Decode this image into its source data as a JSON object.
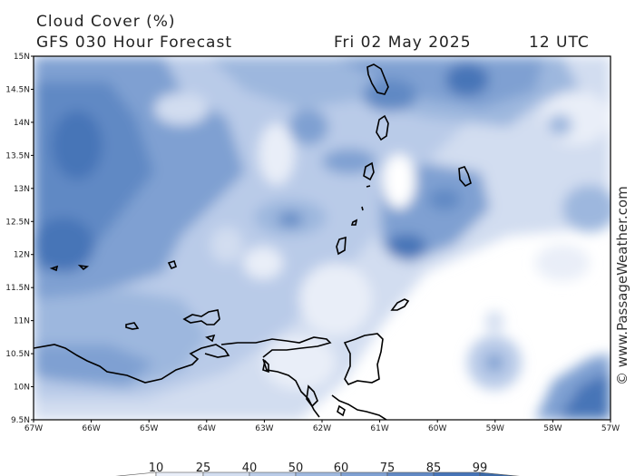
{
  "header": {
    "title": "Cloud Cover (%)",
    "forecast": "GFS 030 Hour Forecast",
    "date": "Fri 02 May 2025",
    "time": "12 UTC"
  },
  "map": {
    "lat_labels": [
      "15N",
      "14.5N",
      "14N",
      "13.5N",
      "13N",
      "12.5N",
      "12N",
      "11.5N",
      "11N",
      "10.5N",
      "10N",
      "9.5N"
    ],
    "lon_labels": [
      "67W",
      "66W",
      "65W",
      "64W",
      "63W",
      "62W",
      "61W",
      "60W",
      "59W",
      "58W",
      "57W"
    ]
  },
  "watermark": "© www.PassageWeather.com",
  "colorbar": {
    "labels": [
      "10",
      "25",
      "40",
      "50",
      "60",
      "75",
      "85",
      "99"
    ],
    "colors": [
      "#ffffff",
      "#e9eef8",
      "#d2ddf0",
      "#b9cbe8",
      "#9db7de",
      "#7fa0d2",
      "#6189c4",
      "#4674b7",
      "#3c6aa8"
    ]
  }
}
